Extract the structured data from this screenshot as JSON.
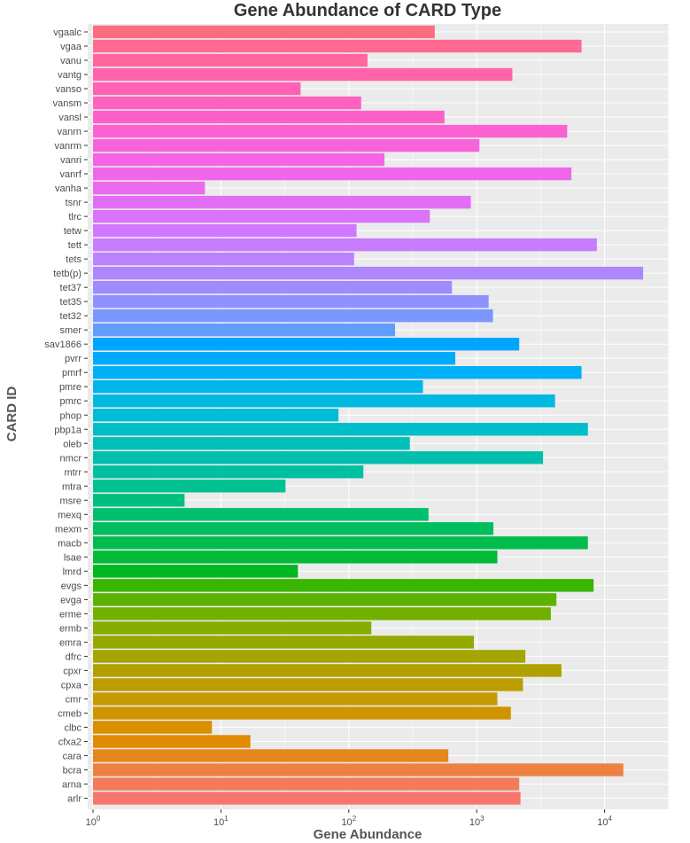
{
  "chart_data": {
    "type": "bar",
    "orientation": "horizontal",
    "title": "Gene Abundance of CARD Type",
    "xlabel": "Gene Abundance",
    "ylabel": "CARD ID",
    "x_scale": "log10",
    "xlim": [
      1,
      20000
    ],
    "x_ticks": [
      {
        "value": 1,
        "base": "10",
        "exp": "0"
      },
      {
        "value": 10,
        "base": "10",
        "exp": "1"
      },
      {
        "value": 100,
        "base": "10",
        "exp": "2"
      },
      {
        "value": 1000,
        "base": "10",
        "exp": "3"
      },
      {
        "value": 10000,
        "base": "10",
        "exp": "4"
      }
    ],
    "grid": true,
    "legend": "none",
    "background_color": "#ebebeb",
    "categories": [
      "arlr",
      "arna",
      "bcra",
      "cara",
      "cfxa2",
      "clbc",
      "cmeb",
      "cmr",
      "cpxa",
      "cpxr",
      "dfrc",
      "emra",
      "ermb",
      "erme",
      "evga",
      "evgs",
      "lmrd",
      "lsae",
      "macb",
      "mexm",
      "mexq",
      "msre",
      "mtra",
      "mtrr",
      "nmcr",
      "oleb",
      "pbp1a",
      "phop",
      "pmrc",
      "pmre",
      "pmrf",
      "pvrr",
      "sav1866",
      "smer",
      "tet32",
      "tet35",
      "tet37",
      "tetb(p)",
      "tets",
      "tett",
      "tetw",
      "tlrc",
      "tsnr",
      "vanha",
      "vanrf",
      "vanri",
      "vanrm",
      "vanrn",
      "vansl",
      "vansm",
      "vanso",
      "vantg",
      "vanu",
      "vgaa",
      "vgaalc"
    ],
    "values": [
      2200,
      2150,
      14000,
      600,
      17,
      8.5,
      1850,
      1450,
      2300,
      4600,
      2400,
      950,
      150,
      3800,
      4200,
      8200,
      40,
      1450,
      7400,
      1350,
      420,
      5.2,
      32,
      130,
      3300,
      300,
      7400,
      83,
      4100,
      380,
      6600,
      680,
      2150,
      230,
      1340,
      1240,
      640,
      20000,
      110,
      8700,
      115,
      430,
      900,
      7.5,
      5500,
      190,
      1050,
      5100,
      560,
      125,
      42,
      1900,
      140,
      6600,
      470
    ],
    "colors": [
      "#F8766D",
      "#F37B59",
      "#ED8141",
      "#E7861B",
      "#E08B00",
      "#D89000",
      "#CF9400",
      "#C59900",
      "#BB9D00",
      "#B0A100",
      "#A3A500",
      "#95A900",
      "#85AD00",
      "#72B000",
      "#5BB300",
      "#39B600",
      "#00B81F",
      "#00BA38",
      "#00BC4C",
      "#00BE5E",
      "#00BF6F",
      "#00C07F",
      "#00C18F",
      "#00C19F",
      "#00C0AD",
      "#00BFBB",
      "#00BEC8",
      "#00BCD5",
      "#00B9E1",
      "#00B5EC",
      "#00B0F6",
      "#00ABFD",
      "#00A5FF",
      "#619CFF",
      "#7B97FF",
      "#8F91FF",
      "#A08BFF",
      "#AE87FF",
      "#BC81FF",
      "#C77CFF",
      "#D277FF",
      "#DB72FB",
      "#E36EF6",
      "#EA6AF0",
      "#F066EA",
      "#F564E3",
      "#F863DB",
      "#FB61D3",
      "#FD61C9",
      "#FF61C0",
      "#FF62B5",
      "#FF64AA",
      "#FF679E",
      "#FE6A91",
      "#FC6D84"
    ]
  }
}
